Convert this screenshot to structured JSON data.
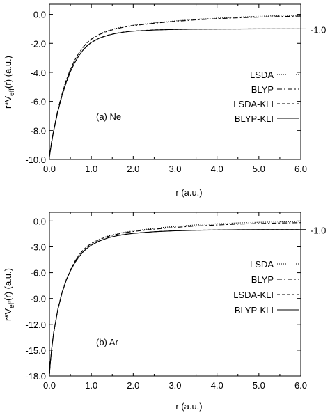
{
  "chart_data": [
    {
      "type": "line",
      "panel_label": "(a)  Ne",
      "xlabel": "r (a.u.)",
      "ylabel": "r*V_eff(r) (a.u.)",
      "ylabel_parts": {
        "base": "r*V",
        "sub": "eff",
        "tail": "(r)  (a.u.)"
      },
      "xlim": [
        0.0,
        6.0
      ],
      "ylim": [
        -10.0,
        0.7
      ],
      "xticks": [
        "0.0",
        "1.0",
        "2.0",
        "3.0",
        "4.0",
        "5.0",
        "6.0"
      ],
      "xtick_values": [
        0,
        1,
        2,
        3,
        4,
        5,
        6
      ],
      "yticks": [
        "0.0",
        "-2.0",
        "-4.0",
        "-6.0",
        "-8.0",
        "-10.0"
      ],
      "ytick_values": [
        0,
        -2,
        -4,
        -6,
        -8,
        -10
      ],
      "right_annotation": {
        "text": "-1.0",
        "y": -1.0
      },
      "series": [
        {
          "name": "LSDA",
          "dash": "1,2",
          "x": [
            0,
            0.05,
            0.1,
            0.2,
            0.3,
            0.4,
            0.5,
            0.6,
            0.7,
            0.8,
            0.9,
            1.0,
            1.2,
            1.4,
            1.6,
            1.8,
            2.0,
            2.5,
            3.0,
            3.5,
            4.0,
            4.5,
            5.0,
            5.5,
            6.0
          ],
          "y": [
            -9.8,
            -8.8,
            -8.0,
            -6.6,
            -5.5,
            -4.55,
            -3.8,
            -3.18,
            -2.68,
            -2.27,
            -1.95,
            -1.7,
            -1.35,
            -1.12,
            -0.96,
            -0.84,
            -0.75,
            -0.58,
            -0.45,
            -0.34,
            -0.26,
            -0.19,
            -0.13,
            -0.09,
            -0.06
          ]
        },
        {
          "name": "BLYP",
          "dash": "7,3,2,3",
          "x": [
            0,
            0.05,
            0.1,
            0.2,
            0.3,
            0.4,
            0.5,
            0.6,
            0.7,
            0.8,
            0.9,
            1.0,
            1.2,
            1.4,
            1.6,
            1.8,
            2.0,
            2.5,
            3.0,
            3.5,
            4.0,
            4.5,
            5.0,
            5.5,
            6.0
          ],
          "y": [
            -9.8,
            -8.8,
            -8.0,
            -6.6,
            -5.5,
            -4.55,
            -3.8,
            -3.18,
            -2.68,
            -2.27,
            -1.95,
            -1.72,
            -1.38,
            -1.15,
            -0.99,
            -0.87,
            -0.78,
            -0.61,
            -0.48,
            -0.38,
            -0.3,
            -0.24,
            -0.19,
            -0.15,
            -0.12
          ]
        },
        {
          "name": "LSDA-KLI",
          "dash": "4,3",
          "x": [
            0,
            0.05,
            0.1,
            0.2,
            0.3,
            0.4,
            0.5,
            0.6,
            0.7,
            0.8,
            0.9,
            1.0,
            1.2,
            1.4,
            1.6,
            1.8,
            2.0,
            2.5,
            3.0,
            3.5,
            4.0,
            4.5,
            5.0,
            5.5,
            6.0
          ],
          "y": [
            -9.8,
            -8.85,
            -8.05,
            -6.7,
            -5.6,
            -4.7,
            -3.95,
            -3.35,
            -2.86,
            -2.47,
            -2.16,
            -1.93,
            -1.62,
            -1.43,
            -1.3,
            -1.21,
            -1.15,
            -1.07,
            -1.04,
            -1.02,
            -1.01,
            -1.005,
            -1.0,
            -1.0,
            -1.0
          ]
        },
        {
          "name": "BLYP-KLI",
          "dash": "",
          "x": [
            0,
            0.05,
            0.1,
            0.2,
            0.3,
            0.4,
            0.5,
            0.6,
            0.7,
            0.8,
            0.9,
            1.0,
            1.2,
            1.4,
            1.6,
            1.8,
            2.0,
            2.5,
            3.0,
            3.5,
            4.0,
            4.5,
            5.0,
            5.5,
            6.0
          ],
          "y": [
            -9.8,
            -8.85,
            -8.05,
            -6.7,
            -5.6,
            -4.7,
            -3.95,
            -3.35,
            -2.86,
            -2.47,
            -2.17,
            -1.94,
            -1.63,
            -1.44,
            -1.31,
            -1.22,
            -1.16,
            -1.08,
            -1.04,
            -1.02,
            -1.01,
            -1.005,
            -1.0,
            -1.0,
            -1.0
          ]
        }
      ],
      "legend_position": "right"
    },
    {
      "type": "line",
      "panel_label": "(b)  Ar",
      "xlabel": "r (a.u.)",
      "ylabel": "r*V_eff(r) (a.u.)",
      "ylabel_parts": {
        "base": "r*V",
        "sub": "eff",
        "tail": "(r)  (a.u.)"
      },
      "xlim": [
        0.0,
        6.0
      ],
      "ylim": [
        -18.0,
        1.0
      ],
      "xticks": [
        "0.0",
        "1.0",
        "2.0",
        "3.0",
        "4.0",
        "5.0",
        "6.0"
      ],
      "xtick_values": [
        0,
        1,
        2,
        3,
        4,
        5,
        6
      ],
      "yticks": [
        "0.0",
        "-3.0",
        "-6.0",
        "-9.0",
        "-12.0",
        "-15.0",
        "-18.0"
      ],
      "ytick_values": [
        0,
        -3,
        -6,
        -9,
        -12,
        -15,
        -18
      ],
      "right_annotation": {
        "text": "-1.0",
        "y": -1.0
      },
      "series": [
        {
          "name": "LSDA",
          "dash": "1,2",
          "x": [
            0,
            0.02,
            0.05,
            0.1,
            0.2,
            0.3,
            0.4,
            0.5,
            0.6,
            0.7,
            0.8,
            0.9,
            1.0,
            1.2,
            1.4,
            1.6,
            1.8,
            2.0,
            2.5,
            3.0,
            3.5,
            4.0,
            4.5,
            5.0,
            5.5,
            6.0
          ],
          "y": [
            -17.8,
            -16.5,
            -15.0,
            -13.0,
            -10.3,
            -8.3,
            -6.85,
            -5.7,
            -4.75,
            -4.0,
            -3.4,
            -2.95,
            -2.6,
            -2.1,
            -1.75,
            -1.5,
            -1.3,
            -1.15,
            -0.85,
            -0.62,
            -0.45,
            -0.32,
            -0.22,
            -0.15,
            -0.1,
            -0.07
          ]
        },
        {
          "name": "BLYP",
          "dash": "7,3,2,3",
          "x": [
            0,
            0.02,
            0.05,
            0.1,
            0.2,
            0.3,
            0.4,
            0.5,
            0.6,
            0.7,
            0.8,
            0.9,
            1.0,
            1.2,
            1.4,
            1.6,
            1.8,
            2.0,
            2.5,
            3.0,
            3.5,
            4.0,
            4.5,
            5.0,
            5.5,
            6.0
          ],
          "y": [
            -17.8,
            -16.5,
            -15.0,
            -13.0,
            -10.3,
            -8.3,
            -6.85,
            -5.7,
            -4.75,
            -4.0,
            -3.4,
            -2.95,
            -2.62,
            -2.13,
            -1.79,
            -1.55,
            -1.36,
            -1.22,
            -0.95,
            -0.74,
            -0.58,
            -0.46,
            -0.36,
            -0.29,
            -0.23,
            -0.19
          ]
        },
        {
          "name": "LSDA-KLI",
          "dash": "4,3",
          "x": [
            0,
            0.02,
            0.05,
            0.1,
            0.2,
            0.3,
            0.4,
            0.5,
            0.6,
            0.7,
            0.8,
            0.9,
            1.0,
            1.2,
            1.4,
            1.6,
            1.8,
            2.0,
            2.5,
            3.0,
            3.5,
            4.0,
            4.5,
            5.0,
            5.5,
            6.0
          ],
          "y": [
            -17.8,
            -16.5,
            -15.0,
            -13.0,
            -10.3,
            -8.35,
            -6.9,
            -5.8,
            -4.9,
            -4.2,
            -3.6,
            -3.15,
            -2.8,
            -2.3,
            -1.95,
            -1.72,
            -1.55,
            -1.43,
            -1.24,
            -1.13,
            -1.07,
            -1.04,
            -1.02,
            -1.01,
            -1.0,
            -1.0
          ]
        },
        {
          "name": "BLYP-KLI",
          "dash": "",
          "x": [
            0,
            0.02,
            0.05,
            0.1,
            0.2,
            0.3,
            0.4,
            0.5,
            0.6,
            0.7,
            0.8,
            0.9,
            1.0,
            1.2,
            1.4,
            1.6,
            1.8,
            2.0,
            2.5,
            3.0,
            3.5,
            4.0,
            4.5,
            5.0,
            5.5,
            6.0
          ],
          "y": [
            -17.8,
            -16.5,
            -15.0,
            -13.0,
            -10.3,
            -8.35,
            -6.9,
            -5.8,
            -4.9,
            -4.2,
            -3.6,
            -3.16,
            -2.81,
            -2.31,
            -1.96,
            -1.73,
            -1.56,
            -1.44,
            -1.25,
            -1.14,
            -1.08,
            -1.05,
            -1.02,
            -1.01,
            -1.0,
            -1.0
          ]
        }
      ],
      "legend_position": "right"
    }
  ]
}
